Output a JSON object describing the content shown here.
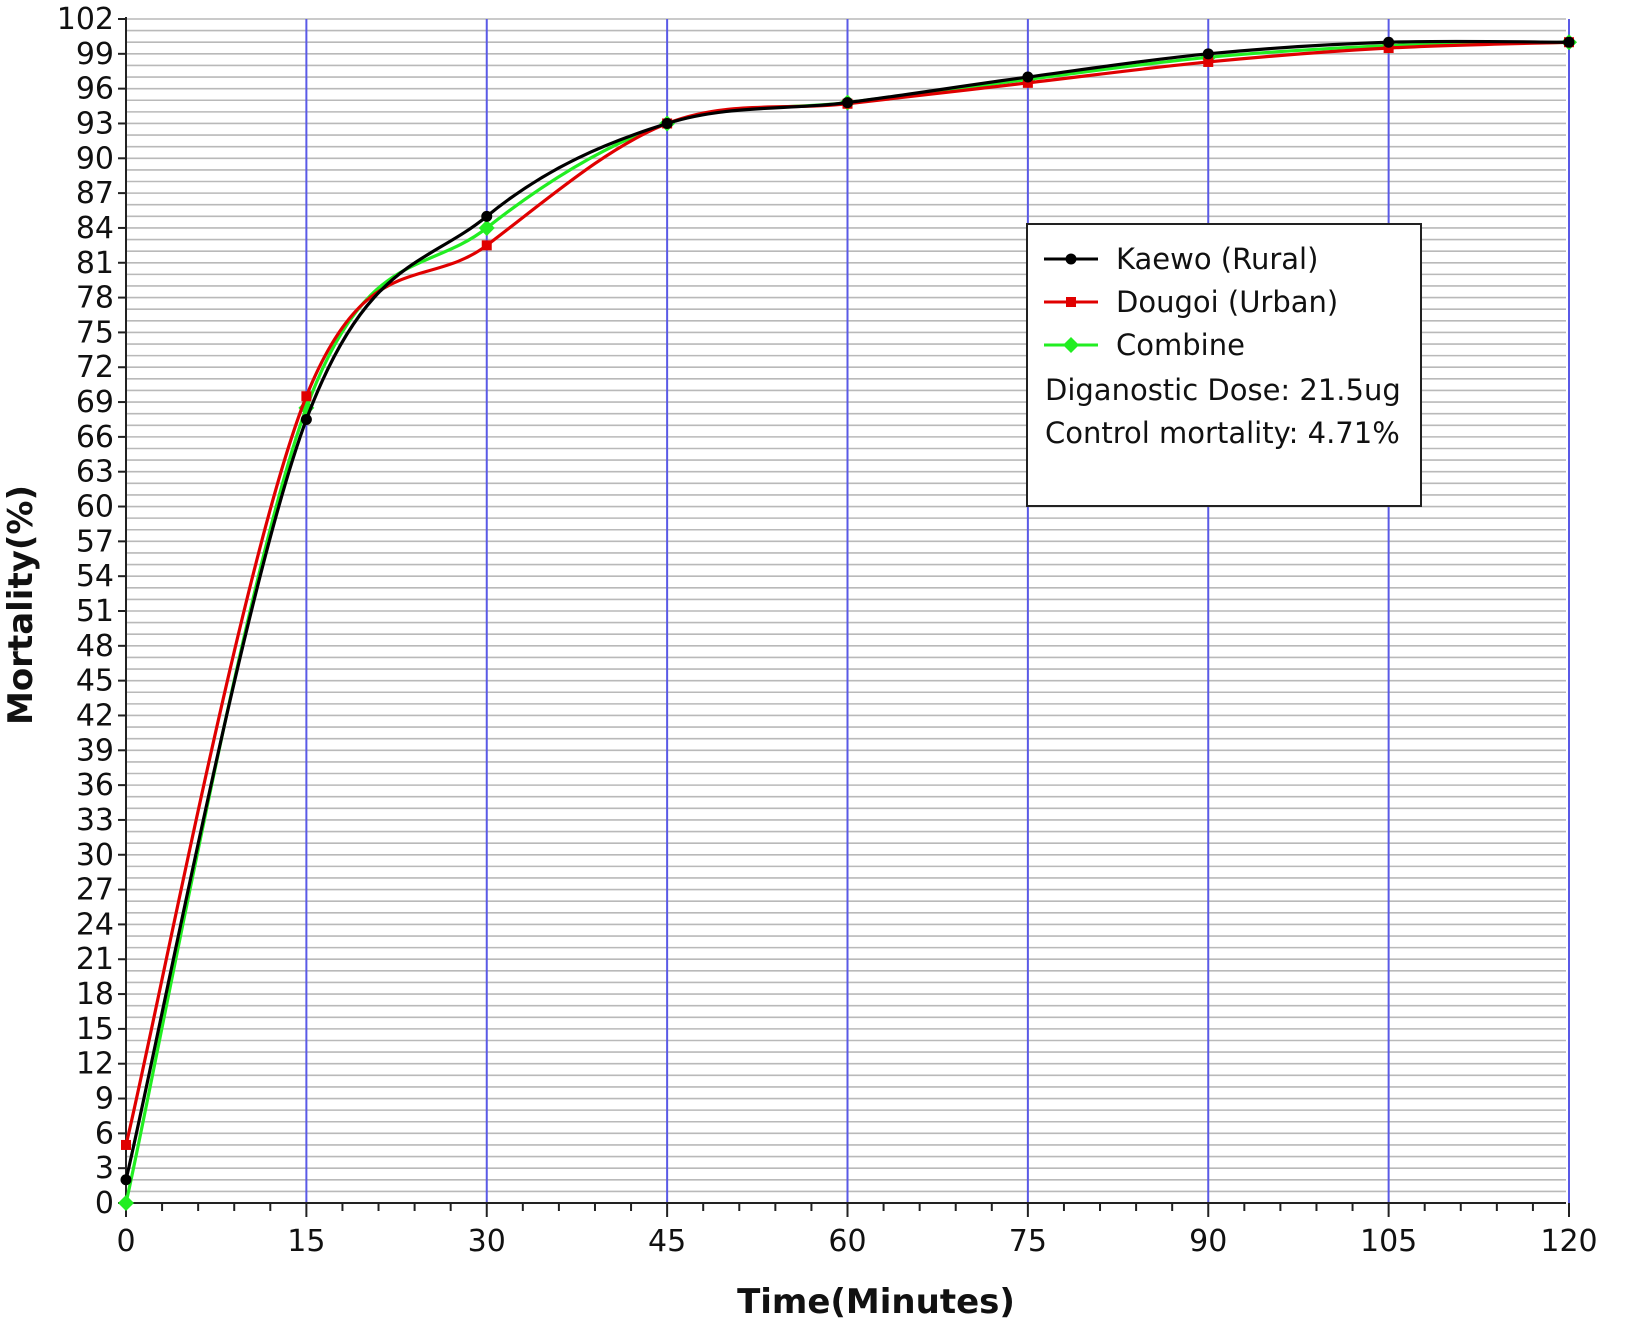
{
  "chart_data": {
    "type": "line",
    "xlabel": "Time(Minutes)",
    "ylabel": "Mortality(%)",
    "xlim": [
      0,
      120
    ],
    "ylim": [
      0,
      102
    ],
    "x_ticks": [
      0,
      15,
      30,
      45,
      60,
      75,
      90,
      105,
      120
    ],
    "y_ticks": [
      0,
      3,
      6,
      9,
      12,
      15,
      18,
      21,
      24,
      27,
      30,
      33,
      36,
      39,
      42,
      45,
      48,
      51,
      54,
      57,
      60,
      63,
      66,
      69,
      72,
      75,
      78,
      81,
      84,
      87,
      90,
      93,
      96,
      99,
      102
    ],
    "grid": {
      "horizontal": true,
      "vertical": true,
      "horizontal_step": 1,
      "horizontal_color": "#b9b9b9",
      "vertical_color": "#5a5ae6"
    },
    "legend_position": "top-right",
    "series": [
      {
        "name": "Kaewo (Rural)",
        "color": "#000000",
        "marker": "circle",
        "x": [
          0,
          15,
          30,
          45,
          60,
          75,
          90,
          105,
          120
        ],
        "y": [
          2.0,
          67.5,
          85.0,
          93.0,
          94.8,
          97.0,
          99.0,
          100.0,
          100.0
        ]
      },
      {
        "name": "Dougoi (Urban)",
        "color": "#e00000",
        "marker": "square",
        "x": [
          0,
          15,
          30,
          45,
          60,
          75,
          90,
          105,
          120
        ],
        "y": [
          5.0,
          69.5,
          82.5,
          93.0,
          94.7,
          96.5,
          98.3,
          99.5,
          100.0
        ]
      },
      {
        "name": "Combine",
        "color": "#22ee22",
        "marker": "diamond",
        "x": [
          0,
          15,
          30,
          45,
          60,
          75,
          90,
          105,
          120
        ],
        "y": [
          0.0,
          68.5,
          84.0,
          93.0,
          94.8,
          96.8,
          98.7,
          99.7,
          100.0
        ]
      }
    ],
    "annotations": [
      "Diganostic Dose: 21.5ug",
      "Control mortality: 4.71%"
    ]
  }
}
